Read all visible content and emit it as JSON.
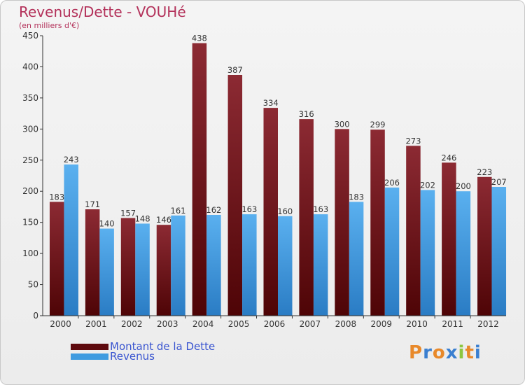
{
  "title": "Revenus/Dette - VOUHé",
  "subtitle": "(en milliers d'€)",
  "colors": {
    "dette": "#7a1418",
    "revenus": "#3f9be0",
    "title": "#b3315a",
    "legend_text": "#3a55d0"
  },
  "logo": {
    "text": "Proxiti",
    "letters": [
      "P",
      "r",
      "o",
      "x",
      "i",
      "t",
      "i"
    ]
  },
  "chart_data": {
    "type": "bar",
    "categories": [
      "2000",
      "2001",
      "2002",
      "2003",
      "2004",
      "2005",
      "2006",
      "2007",
      "2008",
      "2009",
      "2010",
      "2011",
      "2012"
    ],
    "series": [
      {
        "name": "Montant de la Dette",
        "values": [
          183,
          171,
          157,
          146,
          438,
          387,
          334,
          316,
          300,
          299,
          273,
          246,
          223
        ]
      },
      {
        "name": "Revenus",
        "values": [
          243,
          140,
          148,
          161,
          162,
          163,
          160,
          163,
          183,
          206,
          202,
          200,
          207
        ]
      }
    ],
    "yticks": [
      0,
      50,
      100,
      150,
      200,
      250,
      300,
      350,
      400,
      450
    ],
    "ylim": [
      0,
      450
    ],
    "grid": false,
    "legend_position": "bottom-left"
  }
}
